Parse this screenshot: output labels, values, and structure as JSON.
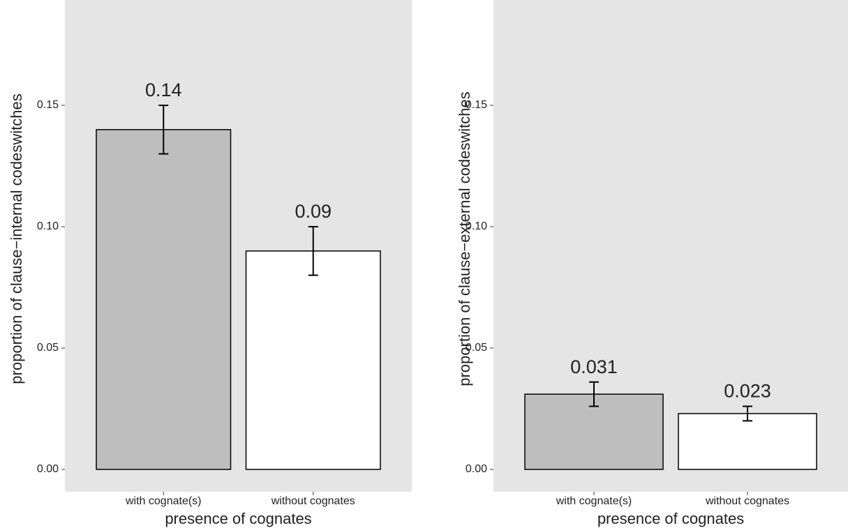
{
  "chart_data": [
    {
      "type": "bar",
      "y_label": "proportion of clause−internal codeswitches",
      "x_label": "presence of cognates",
      "categories": [
        "with cognate(s)",
        "without cognates"
      ],
      "values": [
        0.14,
        0.09
      ],
      "errors": [
        0.01,
        0.01
      ],
      "colors": [
        "#bebebe",
        "#ffffff"
      ],
      "ylim": [
        -0.0092,
        0.1934
      ],
      "yticks": [
        {
          "value": 0,
          "label": "0.00"
        },
        0.05,
        {
          "value": 0.1,
          "label": "0.10"
        },
        0.15
      ],
      "grid": false
    },
    {
      "type": "bar",
      "y_label": "proportion of clause−external codeswitches",
      "x_label": "presence of cognates",
      "categories": [
        "with cognate(s)",
        "without cognates"
      ],
      "values": [
        0.031,
        0.023
      ],
      "errors": [
        0.005,
        0.003
      ],
      "colors": [
        "#bebebe",
        "#ffffff"
      ],
      "ylim": [
        -0.0092,
        0.1934
      ],
      "yticks": [
        {
          "value": 0,
          "label": "0.00"
        },
        0.05,
        {
          "value": 0.1,
          "label": "0.10"
        },
        0.15
      ],
      "grid": false
    }
  ]
}
